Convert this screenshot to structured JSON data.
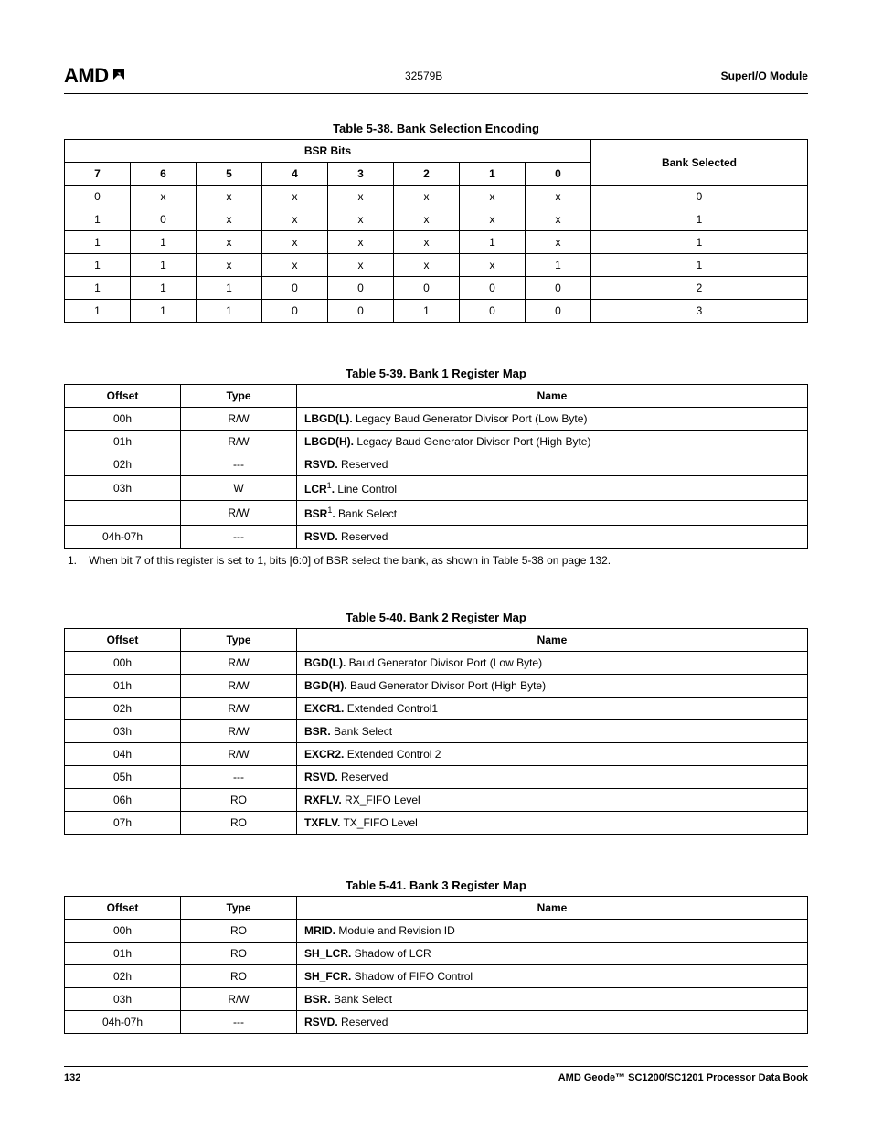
{
  "header": {
    "logo_text": "AMD",
    "doc_number": "32579B",
    "doc_title": "SuperI/O Module"
  },
  "table38": {
    "caption": "Table 5-38.  Bank Selection Encoding",
    "group_header": "BSR Bits",
    "bit_headers": [
      "7",
      "6",
      "5",
      "4",
      "3",
      "2",
      "1",
      "0"
    ],
    "bank_header": "Bank Selected",
    "rows": [
      {
        "bits": [
          "0",
          "x",
          "x",
          "x",
          "x",
          "x",
          "x",
          "x"
        ],
        "bank": "0"
      },
      {
        "bits": [
          "1",
          "0",
          "x",
          "x",
          "x",
          "x",
          "x",
          "x"
        ],
        "bank": "1"
      },
      {
        "bits": [
          "1",
          "1",
          "x",
          "x",
          "x",
          "x",
          "1",
          "x"
        ],
        "bank": "1"
      },
      {
        "bits": [
          "1",
          "1",
          "x",
          "x",
          "x",
          "x",
          "x",
          "1"
        ],
        "bank": "1"
      },
      {
        "bits": [
          "1",
          "1",
          "1",
          "0",
          "0",
          "0",
          "0",
          "0"
        ],
        "bank": "2"
      },
      {
        "bits": [
          "1",
          "1",
          "1",
          "0",
          "0",
          "1",
          "0",
          "0"
        ],
        "bank": "3"
      }
    ]
  },
  "table39": {
    "caption": "Table 5-39.  Bank 1 Register Map",
    "headers": {
      "offset": "Offset",
      "type": "Type",
      "name": "Name"
    },
    "rows": [
      {
        "offset": "00h",
        "type": "R/W",
        "bold": "LBGD(L).",
        "desc": " Legacy Baud Generator Divisor Port (Low Byte)",
        "sup": ""
      },
      {
        "offset": "01h",
        "type": "R/W",
        "bold": "LBGD(H).",
        "desc": " Legacy Baud Generator Divisor Port (High Byte)",
        "sup": ""
      },
      {
        "offset": "02h",
        "type": "---",
        "bold": "RSVD.",
        "desc": " Reserved",
        "sup": ""
      },
      {
        "offset": "03h",
        "type": "W",
        "bold": "LCR",
        "desc": " Line Control",
        "sup": "1",
        "post": "."
      },
      {
        "offset": "",
        "type": "R/W",
        "bold": "BSR",
        "desc": " Bank Select",
        "sup": "1",
        "post": "."
      },
      {
        "offset": "04h-07h",
        "type": "---",
        "bold": "RSVD.",
        "desc": " Reserved",
        "sup": ""
      }
    ],
    "footnote_num": "1.",
    "footnote": "When bit 7 of this register is set to 1, bits [6:0] of BSR select the bank, as shown in Table 5-38 on page 132."
  },
  "table40": {
    "caption": "Table 5-40.  Bank 2 Register Map",
    "headers": {
      "offset": "Offset",
      "type": "Type",
      "name": "Name"
    },
    "rows": [
      {
        "offset": "00h",
        "type": "R/W",
        "bold": "BGD(L).",
        "desc": " Baud Generator Divisor Port (Low Byte)"
      },
      {
        "offset": "01h",
        "type": "R/W",
        "bold": "BGD(H).",
        "desc": " Baud Generator Divisor Port (High Byte)"
      },
      {
        "offset": "02h",
        "type": "R/W",
        "bold": "EXCR1.",
        "desc": " Extended Control1"
      },
      {
        "offset": "03h",
        "type": "R/W",
        "bold": "BSR.",
        "desc": " Bank Select"
      },
      {
        "offset": "04h",
        "type": "R/W",
        "bold": "EXCR2.",
        "desc": " Extended Control 2"
      },
      {
        "offset": "05h",
        "type": "---",
        "bold": "RSVD.",
        "desc": " Reserved"
      },
      {
        "offset": "06h",
        "type": "RO",
        "bold": "RXFLV.",
        "desc": " RX_FIFO Level"
      },
      {
        "offset": "07h",
        "type": "RO",
        "bold": "TXFLV.",
        "desc": " TX_FIFO Level"
      }
    ]
  },
  "table41": {
    "caption": "Table 5-41.  Bank 3 Register Map",
    "headers": {
      "offset": "Offset",
      "type": "Type",
      "name": "Name"
    },
    "rows": [
      {
        "offset": "00h",
        "type": "RO",
        "bold": "MRID.",
        "desc": " Module and Revision ID"
      },
      {
        "offset": "01h",
        "type": "RO",
        "bold": "SH_LCR.",
        "desc": " Shadow of LCR"
      },
      {
        "offset": "02h",
        "type": "RO",
        "bold": "SH_FCR.",
        "desc": " Shadow of FIFO Control"
      },
      {
        "offset": "03h",
        "type": "R/W",
        "bold": "BSR.",
        "desc": " Bank Select"
      },
      {
        "offset": "04h-07h",
        "type": "---",
        "bold": "RSVD.",
        "desc": " Reserved"
      }
    ]
  },
  "footer": {
    "page_num": "132",
    "book": "AMD Geode™ SC1200/SC1201 Processor Data Book"
  }
}
